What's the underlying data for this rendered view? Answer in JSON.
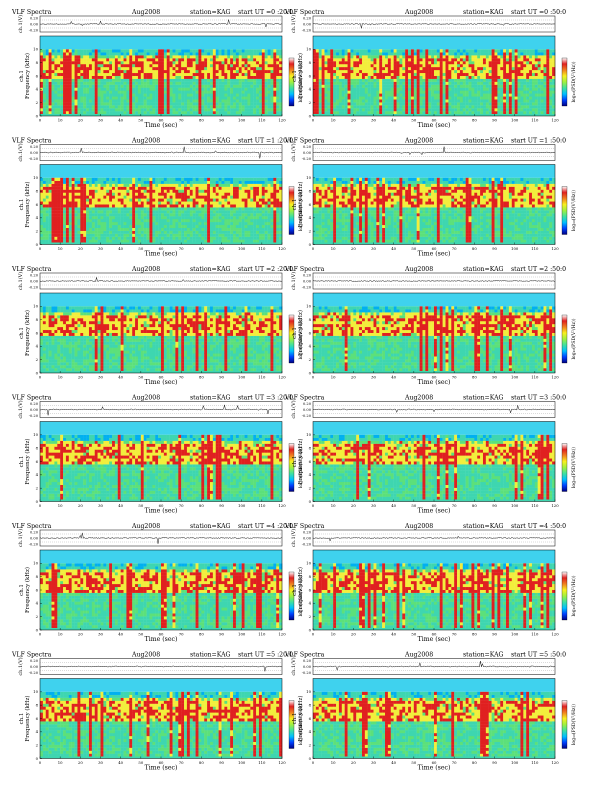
{
  "figure_title": "VLF Spectra",
  "date": "Aug2008",
  "station": "station=KAG",
  "start_label": "start  UT",
  "panel_rows": [
    {
      "left": "=0 :20:0",
      "right": "=0 :50:0"
    },
    {
      "left": "=1 :20:0",
      "right": "=1 :50:0"
    },
    {
      "left": "=2 :20:0",
      "right": "=2 :50:0"
    },
    {
      "left": "=3 :20:0",
      "right": "=3 :50:0"
    },
    {
      "left": "=4 :20:0",
      "right": "=4 :50:0"
    },
    {
      "left": "=5 :20:0",
      "right": "=5 :50:0"
    }
  ],
  "waveform_ylabel": "ch.1(V)",
  "waveform_ticks": [
    "0.20",
    "0.00",
    "-0.20"
  ],
  "spectrogram_ylabel": "ch.1\nFrequency (kHz)",
  "colorbar_label": "log₁₀(PSD(V²/Hz))",
  "colors": {
    "background": "#00b0f0",
    "mid": "#3ed6b0",
    "green": "#5ce07a",
    "yellow": "#f2ee3c",
    "red": "#e02020",
    "upper_band": "#3fd2ee",
    "colorbar_stops": [
      "#000080",
      "#0040ff",
      "#00c0ff",
      "#40e0a0",
      "#a0f040",
      "#f8f020",
      "#f08020",
      "#e02020",
      "#ffffff"
    ]
  },
  "chart_data": {
    "type": "heatmap",
    "xlabel": "Time (sec)",
    "ylabel": "Frequency (kHz)",
    "xlim": [
      0,
      120
    ],
    "ylim": [
      0,
      12
    ],
    "x_ticks": [
      0,
      10,
      20,
      30,
      40,
      50,
      60,
      70,
      80,
      90,
      100,
      110,
      120
    ],
    "y_ticks": [
      0,
      2,
      4,
      6,
      8,
      10
    ],
    "waveform_ylim": [
      -0.2,
      0.2
    ],
    "description_values": {
      "active_band_khz": [
        0.3,
        10.0
      ],
      "quiet_band_khz": [
        10.0,
        12.0
      ],
      "enhanced_band_khz": [
        5.5,
        9.0
      ]
    },
    "panels": [
      {
        "row": 0,
        "col": 0,
        "start_ut": "=0 :20:0"
      },
      {
        "row": 0,
        "col": 1,
        "start_ut": "=0 :50:0"
      },
      {
        "row": 1,
        "col": 0,
        "start_ut": "=1 :20:0"
      },
      {
        "row": 1,
        "col": 1,
        "start_ut": "=1 :50:0"
      },
      {
        "row": 2,
        "col": 0,
        "start_ut": "=2 :20:0"
      },
      {
        "row": 2,
        "col": 1,
        "start_ut": "=2 :50:0"
      },
      {
        "row": 3,
        "col": 0,
        "start_ut": "=3 :20:0"
      },
      {
        "row": 3,
        "col": 1,
        "start_ut": "=3 :50:0"
      },
      {
        "row": 4,
        "col": 0,
        "start_ut": "=4 :20:0"
      },
      {
        "row": 4,
        "col": 1,
        "start_ut": "=4 :50:0"
      },
      {
        "row": 5,
        "col": 0,
        "start_ut": "=5 :20:0"
      },
      {
        "row": 5,
        "col": 1,
        "start_ut": "=5 :50:0"
      }
    ]
  }
}
